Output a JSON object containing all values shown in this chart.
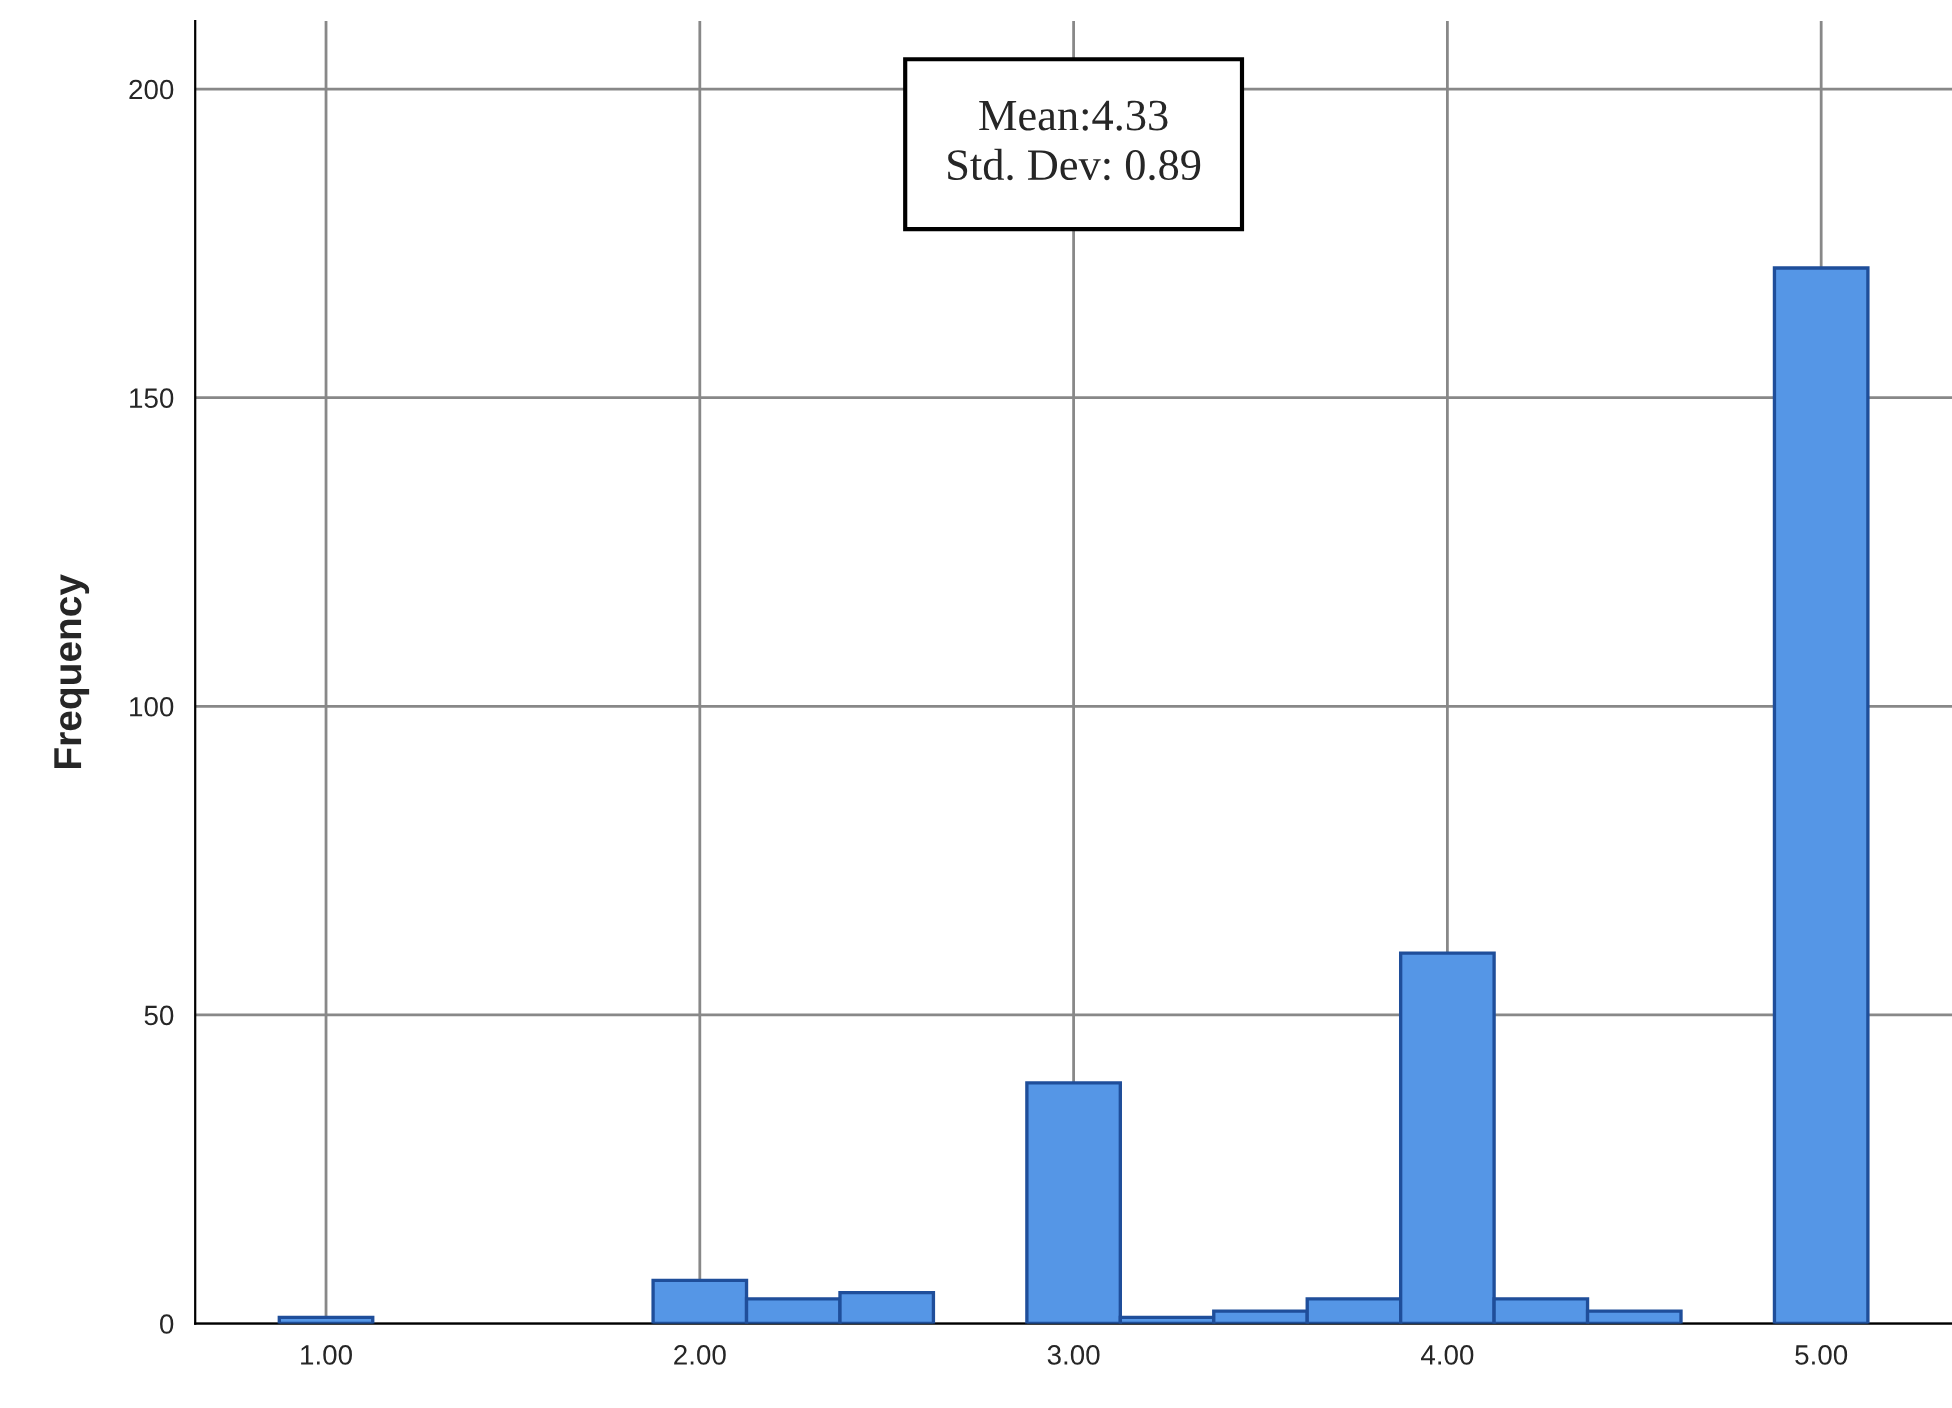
{
  "chart_data": {
    "type": "histogram",
    "ylabel": "Frequency",
    "bins": [
      0.875,
      1.125,
      1.375,
      1.625,
      1.875,
      2.125,
      2.375,
      2.625,
      2.875,
      3.125,
      3.375,
      3.625,
      3.875,
      4.125,
      4.375,
      4.625,
      4.875,
      5.125
    ],
    "values": [
      1,
      0,
      0,
      0,
      7,
      4,
      5,
      0,
      39,
      1,
      2,
      4,
      60,
      4,
      2,
      0,
      171
    ],
    "color": "#5596e6",
    "xlim": [
      0.65,
      5.35
    ],
    "ylim": [
      0,
      211
    ],
    "xticks": [
      {
        "value": 1,
        "label": "1.00"
      },
      {
        "value": 2,
        "label": "2.00"
      },
      {
        "value": 3,
        "label": "3.00"
      },
      {
        "value": 4,
        "label": "4.00"
      },
      {
        "value": 5,
        "label": "5.00"
      }
    ],
    "yticks": [
      0,
      50,
      100,
      150,
      200
    ],
    "grid": true,
    "annotations": [
      "Mean:4.33\nStd. Dev: 0.89"
    ]
  }
}
